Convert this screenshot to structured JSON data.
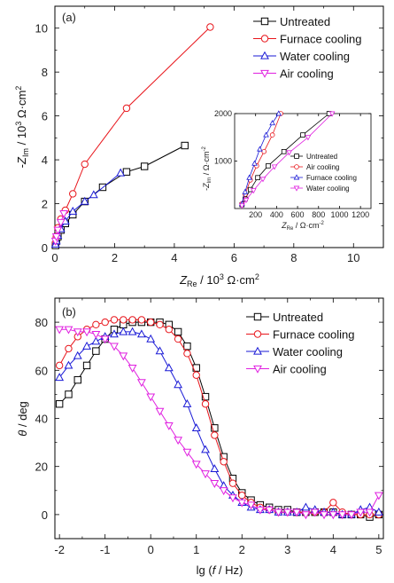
{
  "colors": {
    "untreated": "#000000",
    "furnace": "#e8151b",
    "water": "#1a1ad6",
    "air": "#e020e0"
  },
  "chart_data": [
    {
      "type": "line",
      "panel_label": "(a)",
      "xlabel": "Z_Re / 10^3 Ω·cm^2",
      "ylabel": "-Z_Im / 10^3 Ω·cm^2",
      "xlim": [
        0,
        11
      ],
      "ylim": [
        0,
        11
      ],
      "xticks": [
        "0",
        "2",
        "4",
        "6",
        "8",
        "10"
      ],
      "yticks": [
        "0",
        "2",
        "4",
        "6",
        "8",
        "10"
      ],
      "legend_position": "top-right",
      "series": [
        {
          "name": "Untreated",
          "marker": "square",
          "x": [
            0.02,
            0.05,
            0.1,
            0.2,
            0.35,
            0.6,
            1.0,
            1.6,
            2.4,
            3.0,
            4.35
          ],
          "y": [
            0.1,
            0.3,
            0.5,
            0.8,
            1.1,
            1.5,
            2.1,
            2.75,
            3.45,
            3.7,
            4.65
          ]
        },
        {
          "name": "Furnace cooling",
          "marker": "circle",
          "x": [
            0.02,
            0.05,
            0.1,
            0.2,
            0.35,
            0.6,
            1.0,
            2.4,
            5.2
          ],
          "y": [
            0.2,
            0.5,
            0.9,
            1.3,
            1.7,
            2.45,
            3.8,
            6.35,
            10.05
          ]
        },
        {
          "name": "Water cooling",
          "marker": "triangle-up",
          "x": [
            0.02,
            0.05,
            0.1,
            0.2,
            0.35,
            0.6,
            1.0,
            1.3,
            2.2
          ],
          "y": [
            0.15,
            0.3,
            0.55,
            0.85,
            1.2,
            1.65,
            2.1,
            2.4,
            3.4
          ]
        },
        {
          "name": "Air cooling",
          "marker": "triangle-down",
          "x": [
            0.02,
            0.05,
            0.1,
            0.2,
            0.3
          ],
          "y": [
            0.3,
            0.5,
            0.8,
            1.15,
            1.55
          ]
        }
      ]
    },
    {
      "type": "line",
      "panel_label": "inset",
      "xlabel": "Z_Re / Ω·cm^-2",
      "ylabel": "-Z_Im / Ω·cm^-2",
      "xlim": [
        0,
        1300
      ],
      "ylim": [
        0,
        2000
      ],
      "xticks": [
        "200",
        "400",
        "600",
        "800",
        "1000",
        "1200"
      ],
      "yticks": [
        "1000",
        "2000"
      ],
      "legend_position": "bottom-right",
      "series": [
        {
          "name": "Untreated",
          "marker": "square",
          "x": [
            70,
            100,
            150,
            220,
            320,
            470,
            650,
            900
          ],
          "y": [
            80,
            200,
            400,
            650,
            900,
            1200,
            1550,
            2000
          ]
        },
        {
          "name": "Air cooling",
          "marker": "circle",
          "x": [
            70,
            100,
            150,
            210,
            280,
            360,
            440
          ],
          "y": [
            100,
            300,
            600,
            900,
            1200,
            1550,
            2000
          ]
        },
        {
          "name": "Furnace cooling",
          "marker": "triangle-up",
          "x": [
            70,
            100,
            140,
            190,
            240,
            300,
            360,
            420
          ],
          "y": [
            100,
            350,
            650,
            950,
            1250,
            1550,
            1800,
            2000
          ]
        },
        {
          "name": "Water cooling",
          "marker": "triangle-down",
          "x": [
            70,
            110,
            180,
            270,
            380,
            520,
            700,
            930
          ],
          "y": [
            60,
            180,
            380,
            620,
            880,
            1180,
            1500,
            2000
          ]
        }
      ]
    },
    {
      "type": "line",
      "panel_label": "(b)",
      "xlabel": "lg (f / Hz)",
      "ylabel": "θ / deg",
      "xlim": [
        -2.1,
        5.1
      ],
      "ylim": [
        -10,
        90
      ],
      "xticks": [
        "-2",
        "-1",
        "0",
        "1",
        "2",
        "3",
        "4",
        "5"
      ],
      "yticks": [
        "0",
        "20",
        "40",
        "60",
        "80"
      ],
      "legend_position": "top-right",
      "series": [
        {
          "name": "Untreated",
          "marker": "square",
          "x": [
            -2.0,
            -1.8,
            -1.6,
            -1.4,
            -1.2,
            -1.0,
            -0.8,
            -0.6,
            -0.4,
            -0.2,
            0.0,
            0.2,
            0.4,
            0.6,
            0.8,
            1.0,
            1.2,
            1.4,
            1.6,
            1.8,
            2.0,
            2.2,
            2.4,
            2.6,
            2.8,
            3.0,
            3.2,
            3.4,
            3.6,
            3.8,
            4.0,
            4.2,
            4.4,
            4.6,
            4.8,
            5.0
          ],
          "y": [
            46,
            50,
            56,
            62,
            68,
            73,
            77,
            79,
            80,
            80,
            80,
            80,
            79,
            76,
            70,
            61,
            49,
            36,
            24,
            15,
            9,
            6,
            4,
            3,
            2,
            2,
            1,
            1,
            1,
            1,
            1,
            0,
            0,
            0,
            -1,
            0
          ]
        },
        {
          "name": "Furnace cooling",
          "marker": "circle",
          "x": [
            -2.0,
            -1.8,
            -1.6,
            -1.4,
            -1.2,
            -1.0,
            -0.8,
            -0.6,
            -0.4,
            -0.2,
            0.0,
            0.2,
            0.4,
            0.6,
            0.8,
            1.0,
            1.2,
            1.4,
            1.6,
            1.8,
            2.0,
            2.2,
            2.4,
            2.6,
            2.8,
            3.0,
            3.2,
            3.4,
            3.6,
            3.8,
            4.0,
            4.2,
            4.4,
            4.6,
            4.8,
            5.0
          ],
          "y": [
            62,
            69,
            74,
            77,
            79,
            80,
            81,
            81,
            81,
            81,
            80,
            79,
            77,
            73,
            67,
            58,
            46,
            33,
            22,
            13,
            8,
            5,
            3,
            2,
            1,
            1,
            1,
            1,
            1,
            1,
            5,
            1,
            0,
            0,
            0,
            0
          ]
        },
        {
          "name": "Water cooling",
          "marker": "triangle-up",
          "x": [
            -2.0,
            -1.8,
            -1.6,
            -1.4,
            -1.2,
            -1.0,
            -0.8,
            -0.6,
            -0.4,
            -0.2,
            0.0,
            0.2,
            0.4,
            0.6,
            0.8,
            1.0,
            1.2,
            1.4,
            1.6,
            1.8,
            2.0,
            2.2,
            2.4,
            2.6,
            2.8,
            3.0,
            3.2,
            3.4,
            3.6,
            3.8,
            4.0,
            4.2,
            4.4,
            4.6,
            4.8,
            5.0
          ],
          "y": [
            57,
            62,
            66,
            70,
            72,
            74,
            75,
            76,
            76,
            75,
            73,
            68,
            61,
            54,
            46,
            36,
            27,
            19,
            12,
            8,
            5,
            3,
            2,
            2,
            1,
            1,
            1,
            3,
            2,
            1,
            1,
            0,
            0,
            2,
            3,
            1
          ]
        },
        {
          "name": "Air cooling",
          "marker": "triangle-down",
          "x": [
            -2.0,
            -1.8,
            -1.6,
            -1.4,
            -1.2,
            -1.0,
            -0.8,
            -0.6,
            -0.4,
            -0.2,
            0.0,
            0.2,
            0.4,
            0.6,
            0.8,
            1.0,
            1.2,
            1.4,
            1.6,
            1.8,
            2.0,
            2.2,
            2.4,
            2.6,
            2.8,
            3.0,
            3.2,
            3.4,
            3.6,
            3.8,
            4.0,
            4.2,
            4.4,
            4.6,
            4.8,
            5.0
          ],
          "y": [
            77,
            77,
            76,
            76,
            75,
            73,
            70,
            66,
            61,
            55,
            49,
            43,
            37,
            31,
            26,
            21,
            17,
            13,
            10,
            7,
            5,
            4,
            2,
            2,
            1,
            1,
            1,
            0,
            1,
            0,
            0,
            0,
            0,
            1,
            1,
            8
          ]
        }
      ]
    }
  ]
}
